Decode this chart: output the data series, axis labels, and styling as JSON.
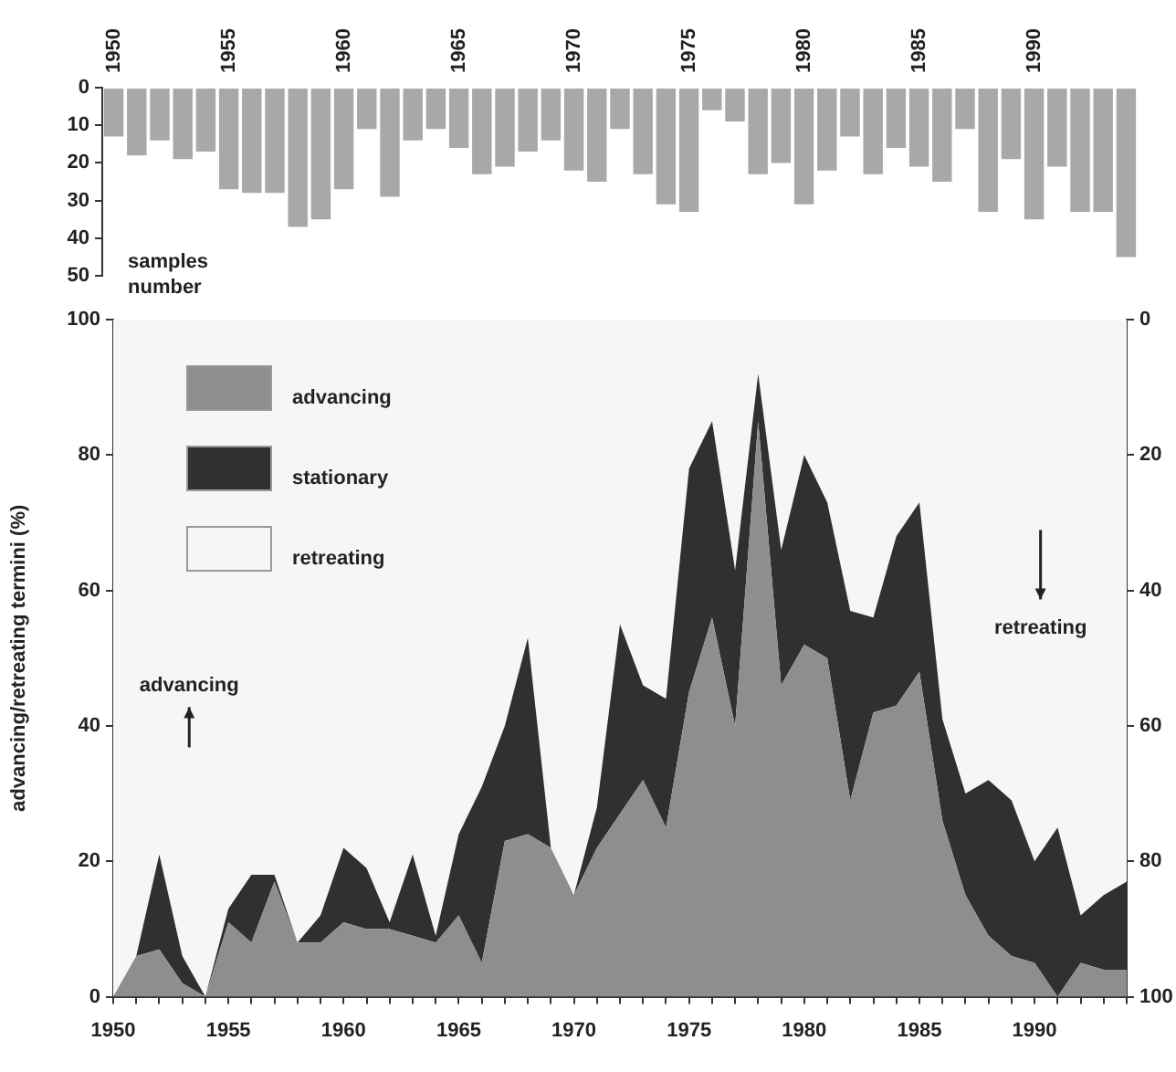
{
  "chart_data": [
    {
      "type": "bar",
      "ylabel": "samples number",
      "categories": [
        "1950",
        null,
        null,
        null,
        null,
        "1955",
        null,
        null,
        null,
        null,
        "1960",
        null,
        null,
        null,
        null,
        "1965",
        null,
        null,
        null,
        null,
        "1970",
        null,
        null,
        null,
        null,
        "1975",
        null,
        null,
        null,
        null,
        "1980",
        null,
        null,
        null,
        null,
        "1985",
        null,
        null,
        null,
        null,
        "1990",
        null,
        null,
        null,
        null
      ],
      "values": [
        13,
        18,
        14,
        19,
        17,
        27,
        28,
        28,
        37,
        35,
        27,
        11,
        29,
        14,
        11,
        16,
        23,
        21,
        17,
        14,
        22,
        25,
        11,
        23,
        31,
        33,
        6,
        9,
        23,
        20,
        31,
        22,
        13,
        23,
        16,
        21,
        25,
        11,
        33,
        19,
        35,
        21,
        33,
        33,
        45
      ],
      "color": "#a8a8a8",
      "ylim": [
        50,
        0
      ],
      "yticks": [
        0,
        10,
        20,
        30,
        40,
        50
      ],
      "grid": false,
      "legend": false
    },
    {
      "type": "area",
      "ylabel": "advancing/retreating termini (%)",
      "stacked": true,
      "legend": "top left",
      "x": [
        1950,
        1951,
        1952,
        1953,
        1954,
        1955,
        1956,
        1957,
        1958,
        1959,
        1960,
        1961,
        1962,
        1963,
        1964,
        1965,
        1966,
        1967,
        1968,
        1969,
        1970,
        1971,
        1972,
        1973,
        1974,
        1975,
        1976,
        1977,
        1978,
        1979,
        1980,
        1981,
        1982,
        1983,
        1984,
        1985,
        1986,
        1987,
        1988,
        1989,
        1990,
        1991,
        1992,
        1993,
        1994
      ],
      "series": [
        {
          "name": "advancing",
          "color": "#8e8e8e",
          "values": [
            0,
            6,
            7,
            2,
            0,
            11,
            8,
            17,
            8,
            8,
            11,
            10,
            10,
            9,
            8,
            12,
            5,
            23,
            24,
            22,
            15,
            22,
            27,
            32,
            25,
            45,
            56,
            40,
            85,
            46,
            52,
            50,
            29,
            42,
            43,
            48,
            26,
            15,
            9,
            6,
            5,
            0,
            5,
            4,
            4
          ]
        },
        {
          "name": "stationary",
          "color": "#303030",
          "values": [
            0,
            0,
            14,
            4,
            0,
            2,
            10,
            1,
            0,
            4,
            11,
            9,
            1,
            12,
            1,
            12,
            26,
            17,
            29,
            0,
            0,
            6,
            28,
            14,
            19,
            33,
            29,
            23,
            7,
            20,
            28,
            23,
            28,
            14,
            25,
            25,
            15,
            15,
            23,
            23,
            15,
            25,
            7,
            11,
            13
          ]
        },
        {
          "name": "retreating",
          "color": "#f6f6f6",
          "values": [
            100,
            94,
            79,
            94,
            100,
            87,
            82,
            82,
            92,
            88,
            78,
            81,
            89,
            79,
            91,
            76,
            69,
            60,
            47,
            78,
            85,
            72,
            45,
            54,
            56,
            22,
            15,
            37,
            8,
            34,
            20,
            27,
            43,
            44,
            32,
            27,
            59,
            70,
            68,
            71,
            80,
            75,
            88,
            85,
            83
          ]
        }
      ],
      "xlim": [
        1950,
        1994
      ],
      "xticks": [
        {
          "value": 1950,
          "label": "1950"
        },
        {
          "value": 1951,
          "label": null
        },
        {
          "value": 1952,
          "label": null
        },
        {
          "value": 1953,
          "label": null
        },
        {
          "value": 1954,
          "label": null
        },
        {
          "value": 1955,
          "label": "1955"
        },
        {
          "value": 1956,
          "label": null
        },
        {
          "value": 1957,
          "label": null
        },
        {
          "value": 1958,
          "label": null
        },
        {
          "value": 1959,
          "label": null
        },
        {
          "value": 1960,
          "label": "1960"
        },
        {
          "value": 1961,
          "label": null
        },
        {
          "value": 1962,
          "label": null
        },
        {
          "value": 1963,
          "label": null
        },
        {
          "value": 1964,
          "label": null
        },
        {
          "value": 1965,
          "label": "1965"
        },
        {
          "value": 1966,
          "label": null
        },
        {
          "value": 1967,
          "label": null
        },
        {
          "value": 1968,
          "label": null
        },
        {
          "value": 1969,
          "label": null
        },
        {
          "value": 1970,
          "label": "1970"
        },
        {
          "value": 1971,
          "label": null
        },
        {
          "value": 1972,
          "label": null
        },
        {
          "value": 1973,
          "label": null
        },
        {
          "value": 1974,
          "label": null
        },
        {
          "value": 1975,
          "label": "1975"
        },
        {
          "value": 1976,
          "label": null
        },
        {
          "value": 1977,
          "label": null
        },
        {
          "value": 1978,
          "label": null
        },
        {
          "value": 1979,
          "label": null
        },
        {
          "value": 1980,
          "label": "1980"
        },
        {
          "value": 1981,
          "label": null
        },
        {
          "value": 1982,
          "label": null
        },
        {
          "value": 1983,
          "label": null
        },
        {
          "value": 1984,
          "label": null
        },
        {
          "value": 1985,
          "label": "1985"
        },
        {
          "value": 1986,
          "label": null
        },
        {
          "value": 1987,
          "label": null
        },
        {
          "value": 1988,
          "label": null
        },
        {
          "value": 1989,
          "label": null
        },
        {
          "value": 1990,
          "label": "1990"
        },
        {
          "value": 1991,
          "label": null
        },
        {
          "value": 1992,
          "label": null
        },
        {
          "value": 1993,
          "label": null
        },
        {
          "value": 1994,
          "label": null
        }
      ],
      "ylim": [
        0,
        100
      ],
      "yticks": [
        0,
        20,
        40,
        60,
        80,
        100
      ],
      "y2lim": [
        100,
        0
      ],
      "y2ticks": [
        0,
        20,
        40,
        60,
        80,
        100
      ],
      "grid": false,
      "annotations": [
        "advancing",
        "retreating"
      ]
    }
  ]
}
